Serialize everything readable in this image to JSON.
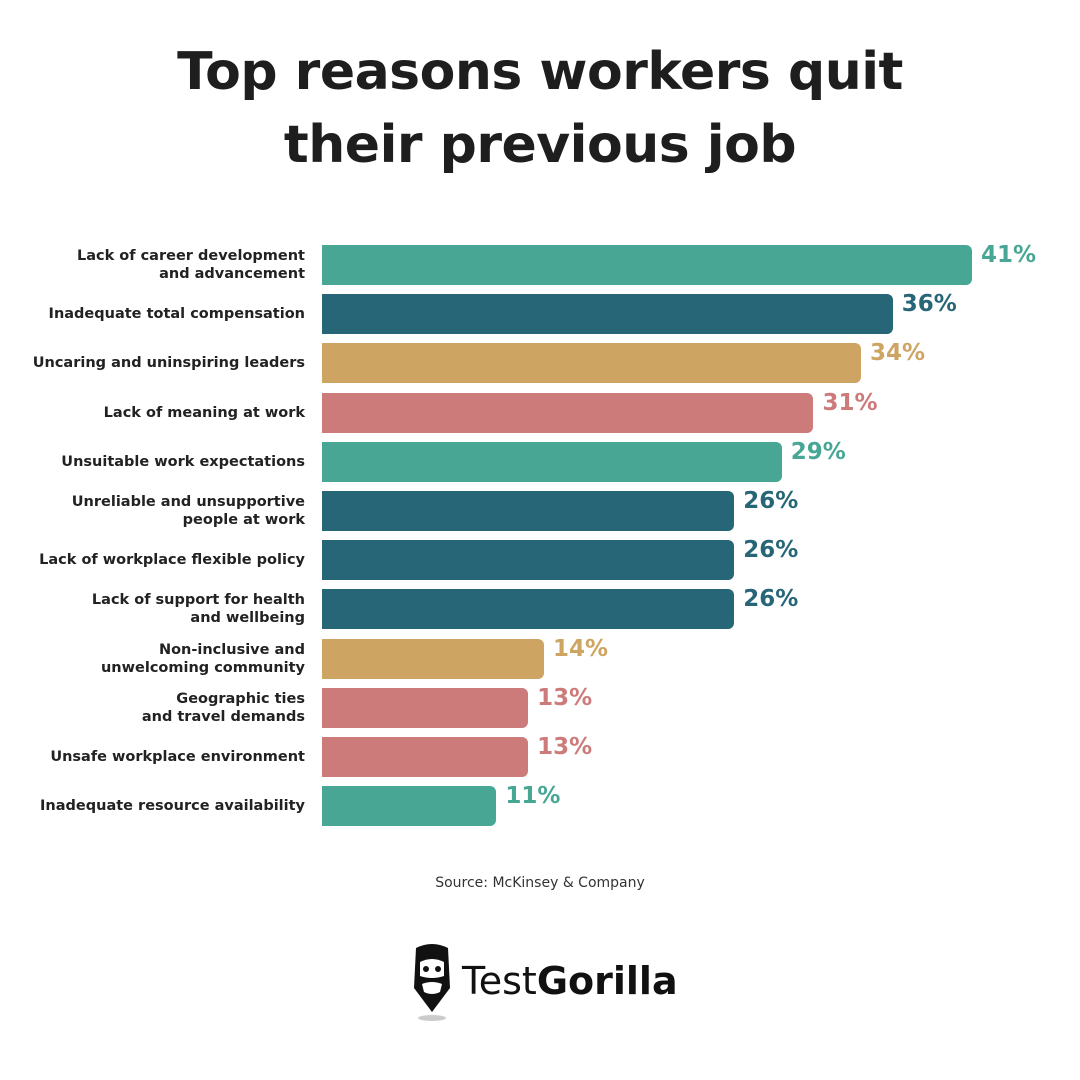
{
  "chart_data": {
    "type": "bar",
    "orientation": "horizontal",
    "title": "Top reasons workers quit\ntheir previous job",
    "categories": [
      "Lack of career development\nand advancement",
      "Inadequate total compensation",
      "Uncaring and uninspiring leaders",
      "Lack of meaning at work",
      "Unsuitable work expectations",
      "Unreliable and unsupportive\npeople at work",
      "Lack of workplace flexible policy",
      "Lack of support for health\nand wellbeing",
      "Non-inclusive and\nunwelcoming community",
      "Geographic ties\nand travel demands",
      "Unsafe workplace environment",
      "Inadequate resource availability"
    ],
    "values": [
      41,
      36,
      34,
      31,
      29,
      26,
      26,
      26,
      14,
      13,
      13,
      11
    ],
    "value_labels": [
      "41%",
      "36%",
      "34%",
      "31%",
      "29%",
      "26%",
      "26%",
      "26%",
      "14%",
      "13%",
      "13%",
      "11%"
    ],
    "colors": [
      "#48a794",
      "#266677",
      "#cda461",
      "#cd7a7a",
      "#48a794",
      "#266677",
      "#266677",
      "#266677",
      "#cda461",
      "#cd7a7a",
      "#cd7a7a",
      "#48a794"
    ],
    "source": "Source: McKinsey & Company"
  },
  "brand": {
    "light": "Test",
    "bold": "Gorilla"
  }
}
